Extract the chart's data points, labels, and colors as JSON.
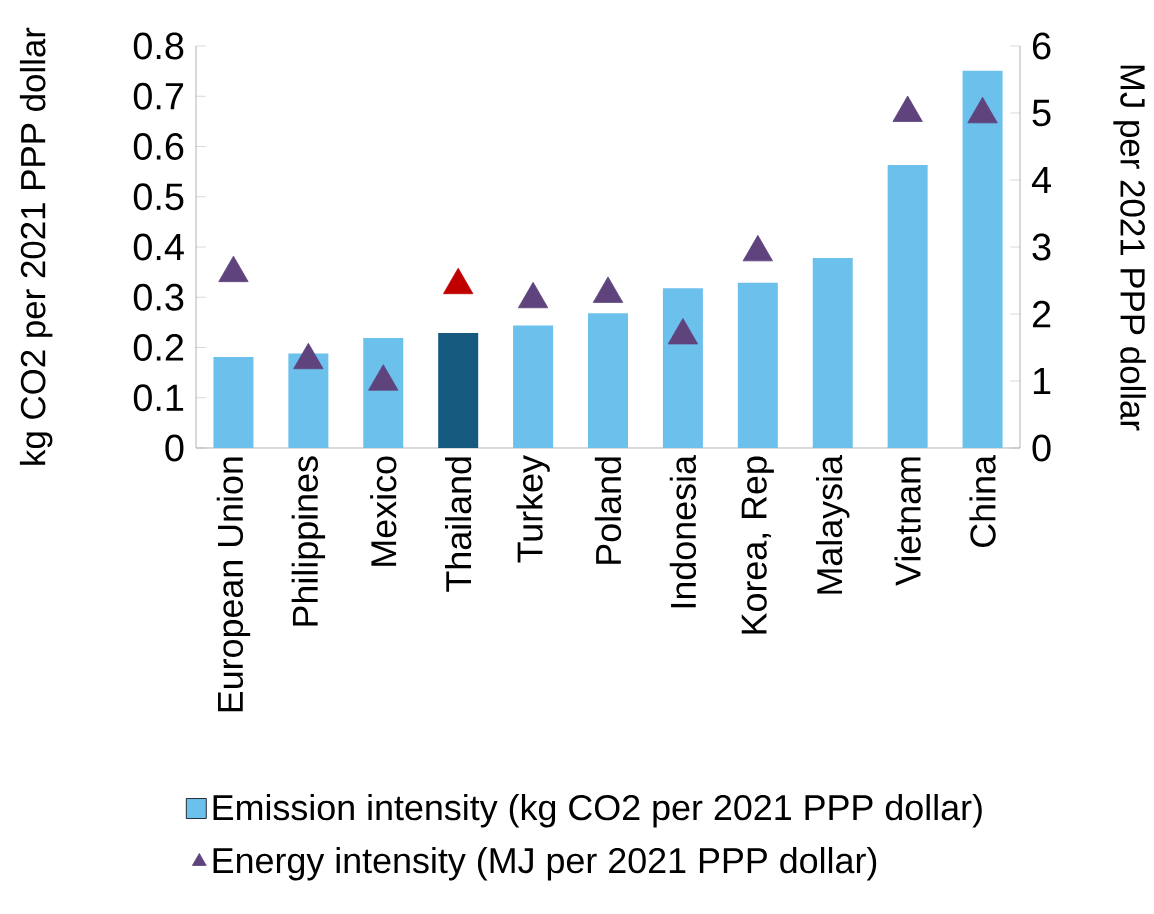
{
  "chart_data": {
    "type": "bar",
    "categories": [
      "European Union",
      "Philippines",
      "Mexico",
      "Thailand",
      "Turkey",
      "Poland",
      "Indonesia",
      "Korea, Rep",
      "Malaysia",
      "Vietnam",
      "China"
    ],
    "series": [
      {
        "name": "Emission intensity (kg CO2 per 2021 PPP dollar)",
        "type": "bar",
        "color": "#6cc0ec",
        "colors": [
          "#6cc0ec",
          "#6cc0ec",
          "#6cc0ec",
          "#175a80",
          "#6cc0ec",
          "#6cc0ec",
          "#6cc0ec",
          "#6cc0ec",
          "#6cc0ec",
          "#6cc0ec",
          "#6cc0ec"
        ],
        "values": [
          0.181,
          0.188,
          0.219,
          0.229,
          0.244,
          0.268,
          0.318,
          0.329,
          0.378,
          0.563,
          0.751
        ]
      },
      {
        "name": "Energy intensity (MJ per 2021 PPP dollar)",
        "type": "scatter",
        "axis": "y2",
        "marker": "triangle",
        "color": "#5e437d",
        "colors": [
          "#5e437d",
          "#5e437d",
          "#5e437d",
          "#c00000",
          "#5e437d",
          "#5e437d",
          "#5e437d",
          "#5e437d",
          "#5e437d",
          "#5e437d",
          "#5e437d"
        ],
        "values": [
          2.61,
          1.31,
          0.99,
          2.43,
          2.22,
          2.3,
          1.68,
          2.92,
          null,
          5.0,
          4.98
        ]
      }
    ],
    "ylabel": "kg CO2 per 2021 PPP dollar",
    "y2label": "MJ per 2021 PPP dollar",
    "ylim": [
      0,
      0.8
    ],
    "yticks": [
      0,
      0.1,
      0.2,
      0.3,
      0.4,
      0.5,
      0.6,
      0.7,
      0.8
    ],
    "y2lim": [
      0,
      6
    ],
    "y2ticks": [
      0,
      1,
      2,
      3,
      4,
      5,
      6
    ],
    "legend": "bottom"
  }
}
